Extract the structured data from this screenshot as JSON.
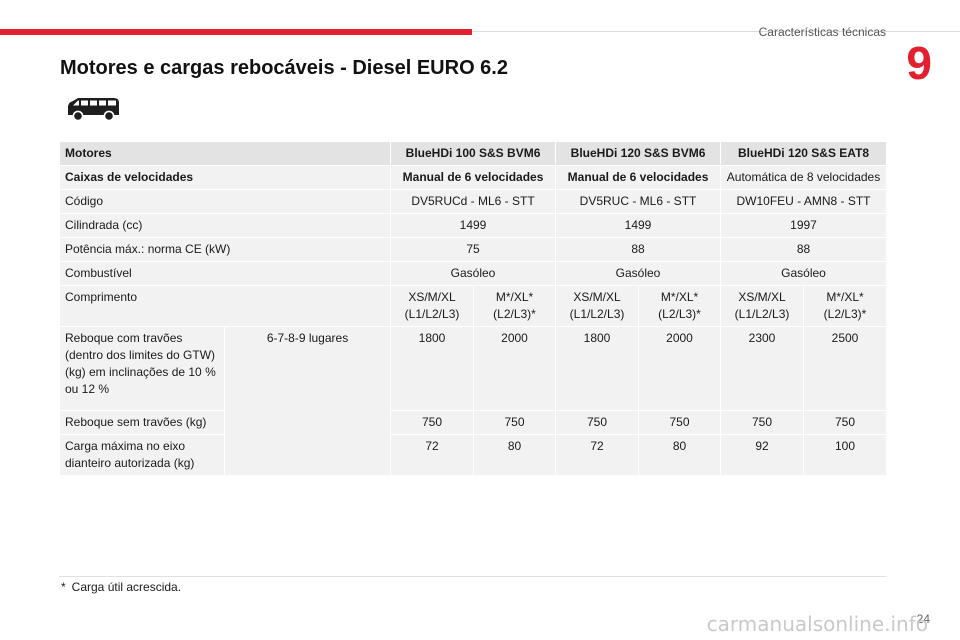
{
  "header": {
    "section_title": "Características técnicas",
    "chapter_number": "9"
  },
  "page": {
    "title": "Motores e cargas rebocáveis - Diesel EURO 6.2",
    "vehicle_icon": "van-icon",
    "page_number": "24"
  },
  "table": {
    "header": {
      "label": "Motores",
      "engines": [
        "BlueHDi 100 S&S BVM6",
        "BlueHDi 120 S&S BVM6",
        "BlueHDi 120 S&S EAT8"
      ]
    },
    "gearbox": {
      "label": "Caixas de velocidades",
      "values": [
        "Manual de 6 velocidades",
        "Manual de 6 velocidades",
        "Automática de 8 velocidades"
      ]
    },
    "code": {
      "label": "Código",
      "values": [
        "DV5RUCd - ML6 - STT",
        "DV5RUC - ML6 - STT",
        "DW10FEU - AMN8 - STT"
      ]
    },
    "displacement": {
      "label": "Cilindrada (cc)",
      "values": [
        "1499",
        "1499",
        "1997"
      ]
    },
    "power": {
      "label": "Potência máx.: norma CE (kW)",
      "values": [
        "75",
        "88",
        "88"
      ]
    },
    "fuel": {
      "label": "Combustível",
      "values": [
        "Gasóleo",
        "Gasóleo",
        "Gasóleo"
      ]
    },
    "length": {
      "label": "Comprimento",
      "values": [
        "XS/M/XL (L1/L2/L3)",
        "M*/XL* (L2/L3)*",
        "XS/M/XL (L1/L2/L3)",
        "M*/XL* (L2/L3)*",
        "XS/M/XL (L1/L2/L3)",
        "M*/XL* (L2/L3)*"
      ]
    },
    "seats_label": "6-7-8-9 lugares",
    "braked_trailer": {
      "label": "Reboque com travões (dentro dos limites do GTW) (kg) em inclinações de 10 % ou 12 %",
      "values": [
        "1800",
        "2000",
        "1800",
        "2000",
        "2300",
        "2500"
      ]
    },
    "unbraked_trailer": {
      "label": "Reboque sem travões (kg)",
      "values": [
        "750",
        "750",
        "750",
        "750",
        "750",
        "750"
      ]
    },
    "front_axle_load": {
      "label": "Carga máxima no eixo dianteiro autorizada (kg)",
      "values": [
        "72",
        "80",
        "72",
        "80",
        "92",
        "100"
      ]
    }
  },
  "footnote": {
    "marker": "*",
    "text": "Carga útil acrescida."
  },
  "watermark": "carmanualsonline.info"
}
